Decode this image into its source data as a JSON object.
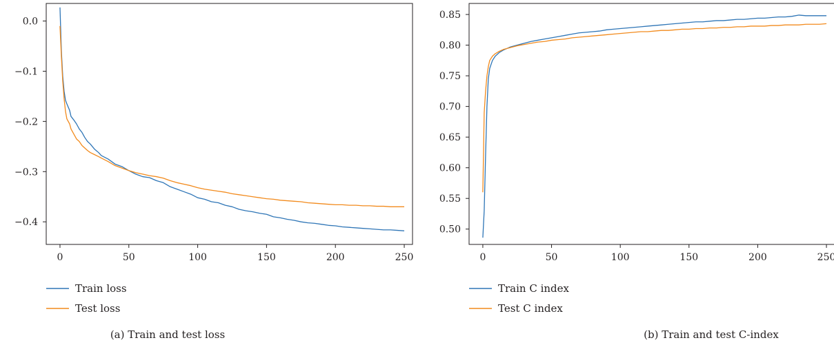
{
  "colors": {
    "train": "#2e75b6",
    "test": "#f28a1c",
    "axis": "#231f20"
  },
  "chart_data": [
    {
      "type": "line",
      "caption": "(a) Train and test loss",
      "xlim": [
        -10,
        256
      ],
      "ylim": [
        -0.445,
        0.035
      ],
      "xticks": [
        0,
        50,
        100,
        150,
        200,
        250
      ],
      "xtick_labels": [
        "0",
        "50",
        "100",
        "150",
        "200",
        "250"
      ],
      "yticks": [
        0.0,
        -0.1,
        -0.2,
        -0.3,
        -0.4
      ],
      "ytick_labels": [
        "0.0",
        "−0.1",
        "−0.2",
        "−0.3",
        "−0.4"
      ],
      "legend": "below-left",
      "series": [
        {
          "name": "Train loss",
          "color": "#2e75b6",
          "points": [
            [
              0,
              0.027
            ],
            [
              1,
              -0.06
            ],
            [
              2,
              -0.11
            ],
            [
              3,
              -0.14
            ],
            [
              4,
              -0.158
            ],
            [
              5,
              -0.165
            ],
            [
              7,
              -0.178
            ],
            [
              8,
              -0.19
            ],
            [
              10,
              -0.197
            ],
            [
              12,
              -0.205
            ],
            [
              14,
              -0.215
            ],
            [
              16,
              -0.222
            ],
            [
              18,
              -0.232
            ],
            [
              20,
              -0.24
            ],
            [
              22,
              -0.245
            ],
            [
              25,
              -0.255
            ],
            [
              28,
              -0.262
            ],
            [
              30,
              -0.268
            ],
            [
              35,
              -0.275
            ],
            [
              40,
              -0.285
            ],
            [
              45,
              -0.29
            ],
            [
              50,
              -0.298
            ],
            [
              55,
              -0.305
            ],
            [
              60,
              -0.31
            ],
            [
              65,
              -0.312
            ],
            [
              70,
              -0.318
            ],
            [
              75,
              -0.322
            ],
            [
              80,
              -0.33
            ],
            [
              85,
              -0.335
            ],
            [
              90,
              -0.34
            ],
            [
              95,
              -0.345
            ],
            [
              100,
              -0.352
            ],
            [
              105,
              -0.355
            ],
            [
              110,
              -0.36
            ],
            [
              115,
              -0.362
            ],
            [
              120,
              -0.367
            ],
            [
              125,
              -0.37
            ],
            [
              130,
              -0.375
            ],
            [
              135,
              -0.378
            ],
            [
              140,
              -0.38
            ],
            [
              145,
              -0.383
            ],
            [
              150,
              -0.385
            ],
            [
              155,
              -0.39
            ],
            [
              160,
              -0.392
            ],
            [
              165,
              -0.395
            ],
            [
              170,
              -0.397
            ],
            [
              175,
              -0.4
            ],
            [
              180,
              -0.402
            ],
            [
              185,
              -0.403
            ],
            [
              190,
              -0.405
            ],
            [
              195,
              -0.407
            ],
            [
              200,
              -0.408
            ],
            [
              205,
              -0.41
            ],
            [
              210,
              -0.411
            ],
            [
              215,
              -0.412
            ],
            [
              220,
              -0.413
            ],
            [
              225,
              -0.414
            ],
            [
              230,
              -0.415
            ],
            [
              235,
              -0.416
            ],
            [
              240,
              -0.416
            ],
            [
              245,
              -0.417
            ],
            [
              250,
              -0.418
            ]
          ]
        },
        {
          "name": "Test loss",
          "color": "#f28a1c",
          "points": [
            [
              0,
              -0.01
            ],
            [
              1,
              -0.07
            ],
            [
              2,
              -0.12
            ],
            [
              3,
              -0.155
            ],
            [
              4,
              -0.18
            ],
            [
              5,
              -0.195
            ],
            [
              7,
              -0.205
            ],
            [
              8,
              -0.215
            ],
            [
              10,
              -0.225
            ],
            [
              12,
              -0.235
            ],
            [
              14,
              -0.24
            ],
            [
              16,
              -0.248
            ],
            [
              18,
              -0.253
            ],
            [
              20,
              -0.258
            ],
            [
              22,
              -0.262
            ],
            [
              25,
              -0.266
            ],
            [
              28,
              -0.27
            ],
            [
              30,
              -0.273
            ],
            [
              35,
              -0.28
            ],
            [
              40,
              -0.288
            ],
            [
              45,
              -0.293
            ],
            [
              50,
              -0.298
            ],
            [
              55,
              -0.302
            ],
            [
              60,
              -0.305
            ],
            [
              65,
              -0.308
            ],
            [
              70,
              -0.31
            ],
            [
              75,
              -0.313
            ],
            [
              80,
              -0.318
            ],
            [
              85,
              -0.322
            ],
            [
              90,
              -0.325
            ],
            [
              95,
              -0.328
            ],
            [
              100,
              -0.332
            ],
            [
              105,
              -0.335
            ],
            [
              110,
              -0.337
            ],
            [
              115,
              -0.339
            ],
            [
              120,
              -0.341
            ],
            [
              125,
              -0.344
            ],
            [
              130,
              -0.346
            ],
            [
              135,
              -0.348
            ],
            [
              140,
              -0.35
            ],
            [
              145,
              -0.352
            ],
            [
              150,
              -0.354
            ],
            [
              155,
              -0.355
            ],
            [
              160,
              -0.357
            ],
            [
              165,
              -0.358
            ],
            [
              170,
              -0.359
            ],
            [
              175,
              -0.36
            ],
            [
              180,
              -0.362
            ],
            [
              185,
              -0.363
            ],
            [
              190,
              -0.364
            ],
            [
              195,
              -0.365
            ],
            [
              200,
              -0.366
            ],
            [
              205,
              -0.366
            ],
            [
              210,
              -0.367
            ],
            [
              215,
              -0.367
            ],
            [
              220,
              -0.368
            ],
            [
              225,
              -0.368
            ],
            [
              230,
              -0.369
            ],
            [
              235,
              -0.369
            ],
            [
              240,
              -0.37
            ],
            [
              245,
              -0.37
            ],
            [
              250,
              -0.37
            ]
          ]
        }
      ]
    },
    {
      "type": "line",
      "caption": "(b) Train and test C-index",
      "xlim": [
        -10,
        256
      ],
      "ylim": [
        0.475,
        0.868
      ],
      "xticks": [
        0,
        50,
        100,
        150,
        200,
        250
      ],
      "xtick_labels": [
        "0",
        "50",
        "100",
        "150",
        "200",
        "250"
      ],
      "yticks": [
        0.5,
        0.55,
        0.6,
        0.65,
        0.7,
        0.75,
        0.8,
        0.85
      ],
      "ytick_labels": [
        "0.50",
        "0.55",
        "0.60",
        "0.65",
        "0.70",
        "0.75",
        "0.80",
        "0.85"
      ],
      "legend": "below-left",
      "series": [
        {
          "name": "Train C index",
          "color": "#2e75b6",
          "points": [
            [
              0,
              0.486
            ],
            [
              1,
              0.53
            ],
            [
              2,
              0.62
            ],
            [
              3,
              0.7
            ],
            [
              4,
              0.745
            ],
            [
              5,
              0.762
            ],
            [
              7,
              0.775
            ],
            [
              9,
              0.782
            ],
            [
              12,
              0.788
            ],
            [
              15,
              0.792
            ],
            [
              20,
              0.797
            ],
            [
              25,
              0.8
            ],
            [
              30,
              0.803
            ],
            [
              35,
              0.806
            ],
            [
              40,
              0.808
            ],
            [
              45,
              0.81
            ],
            [
              50,
              0.812
            ],
            [
              55,
              0.814
            ],
            [
              60,
              0.816
            ],
            [
              65,
              0.818
            ],
            [
              70,
              0.82
            ],
            [
              75,
              0.821
            ],
            [
              80,
              0.822
            ],
            [
              85,
              0.823
            ],
            [
              90,
              0.825
            ],
            [
              95,
              0.826
            ],
            [
              100,
              0.827
            ],
            [
              105,
              0.828
            ],
            [
              110,
              0.829
            ],
            [
              115,
              0.83
            ],
            [
              120,
              0.831
            ],
            [
              125,
              0.832
            ],
            [
              130,
              0.833
            ],
            [
              135,
              0.834
            ],
            [
              140,
              0.835
            ],
            [
              145,
              0.836
            ],
            [
              150,
              0.837
            ],
            [
              155,
              0.838
            ],
            [
              160,
              0.838
            ],
            [
              165,
              0.839
            ],
            [
              170,
              0.84
            ],
            [
              175,
              0.84
            ],
            [
              180,
              0.841
            ],
            [
              185,
              0.842
            ],
            [
              190,
              0.842
            ],
            [
              195,
              0.843
            ],
            [
              200,
              0.844
            ],
            [
              205,
              0.844
            ],
            [
              210,
              0.845
            ],
            [
              215,
              0.846
            ],
            [
              220,
              0.846
            ],
            [
              225,
              0.847
            ],
            [
              230,
              0.849
            ],
            [
              235,
              0.848
            ],
            [
              240,
              0.848
            ],
            [
              245,
              0.848
            ],
            [
              250,
              0.848
            ]
          ]
        },
        {
          "name": "Test C index",
          "color": "#f28a1c",
          "points": [
            [
              0,
              0.56
            ],
            [
              1,
              0.69
            ],
            [
              2,
              0.725
            ],
            [
              3,
              0.75
            ],
            [
              4,
              0.765
            ],
            [
              5,
              0.775
            ],
            [
              7,
              0.782
            ],
            [
              9,
              0.786
            ],
            [
              12,
              0.79
            ],
            [
              15,
              0.793
            ],
            [
              20,
              0.796
            ],
            [
              25,
              0.799
            ],
            [
              30,
              0.801
            ],
            [
              35,
              0.803
            ],
            [
              40,
              0.805
            ],
            [
              45,
              0.806
            ],
            [
              50,
              0.808
            ],
            [
              55,
              0.809
            ],
            [
              60,
              0.81
            ],
            [
              65,
              0.812
            ],
            [
              70,
              0.813
            ],
            [
              75,
              0.814
            ],
            [
              80,
              0.815
            ],
            [
              85,
              0.816
            ],
            [
              90,
              0.817
            ],
            [
              95,
              0.818
            ],
            [
              100,
              0.819
            ],
            [
              105,
              0.82
            ],
            [
              110,
              0.821
            ],
            [
              115,
              0.822
            ],
            [
              120,
              0.822
            ],
            [
              125,
              0.823
            ],
            [
              130,
              0.824
            ],
            [
              135,
              0.824
            ],
            [
              140,
              0.825
            ],
            [
              145,
              0.826
            ],
            [
              150,
              0.826
            ],
            [
              155,
              0.827
            ],
            [
              160,
              0.827
            ],
            [
              165,
              0.828
            ],
            [
              170,
              0.828
            ],
            [
              175,
              0.829
            ],
            [
              180,
              0.829
            ],
            [
              185,
              0.83
            ],
            [
              190,
              0.83
            ],
            [
              195,
              0.831
            ],
            [
              200,
              0.831
            ],
            [
              205,
              0.831
            ],
            [
              210,
              0.832
            ],
            [
              215,
              0.832
            ],
            [
              220,
              0.833
            ],
            [
              225,
              0.833
            ],
            [
              230,
              0.833
            ],
            [
              235,
              0.834
            ],
            [
              240,
              0.834
            ],
            [
              245,
              0.834
            ],
            [
              250,
              0.835
            ]
          ]
        }
      ]
    }
  ]
}
